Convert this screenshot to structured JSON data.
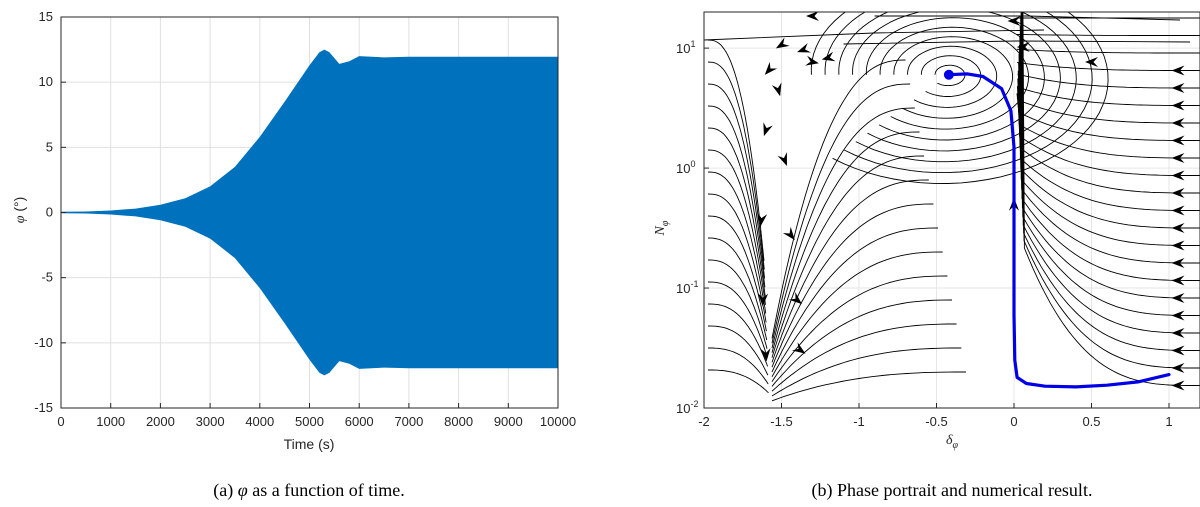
{
  "chart_data": [
    {
      "type": "area",
      "ylabel_symbol": "φ",
      "ylabel_unit": " (°)",
      "xlabel": "Time (s)",
      "xlim": [
        0,
        10000
      ],
      "ylim": [
        -15,
        15
      ],
      "xticks": [
        0,
        1000,
        2000,
        3000,
        4000,
        5000,
        6000,
        7000,
        8000,
        9000,
        10000
      ],
      "yticks": [
        -15,
        -10,
        -5,
        0,
        5,
        10,
        15
      ],
      "grid": true,
      "fill_color": "#0072bd",
      "series": [
        {
          "values": "upper envelope of oscillation amplitude (symmetric about 0)",
          "x": [
            0,
            500,
            1000,
            1500,
            2000,
            2500,
            3000,
            3500,
            4000,
            4500,
            5000,
            5200,
            5300,
            5400,
            5600,
            5800,
            6000,
            6500,
            7000,
            8000,
            9000,
            10000
          ],
          "y": [
            0.05,
            0.08,
            0.15,
            0.3,
            0.6,
            1.1,
            2.0,
            3.5,
            5.8,
            8.5,
            11.3,
            12.3,
            12.5,
            12.3,
            11.4,
            11.6,
            12.0,
            11.9,
            11.95,
            11.95,
            11.95,
            11.95
          ]
        }
      ],
      "caption_prefix": "(a) ",
      "caption_symbol": "φ",
      "caption_rest": " as a function of time."
    },
    {
      "type": "scatter",
      "xlabel_symbol": "δ",
      "xlabel_sub": "φ",
      "ylabel_symbol": "N",
      "ylabel_sub": "φ",
      "xlim": [
        -2,
        1.2
      ],
      "ylim": [
        0.01,
        20
      ],
      "yscale": "log",
      "xticks": [
        -2,
        -1.5,
        -1,
        -0.5,
        0,
        0.5,
        1
      ],
      "xtick_labels": [
        "-2",
        "-1.5",
        "-1",
        "-0.5",
        "0",
        "0.5",
        "1"
      ],
      "yticks": [
        0.01,
        0.1,
        1,
        10
      ],
      "ytick_bases": [
        "10",
        "10",
        "10",
        "10"
      ],
      "ytick_exps": [
        "-2",
        "-1",
        "0",
        "1"
      ],
      "grid": true,
      "streamline_color": "#000000",
      "trajectory_color": "#0000e6",
      "trajectory": {
        "x": [
          1.0,
          0.8,
          0.6,
          0.4,
          0.2,
          0.08,
          0.02,
          0.005,
          0.0,
          0.0,
          0.0,
          0.0,
          -0.02,
          -0.08,
          -0.2,
          -0.3,
          -0.42
        ],
        "y": [
          0.019,
          0.0165,
          0.0155,
          0.015,
          0.0152,
          0.016,
          0.018,
          0.025,
          0.06,
          0.2,
          0.6,
          1.5,
          3.0,
          4.6,
          5.8,
          6.1,
          6.0
        ]
      },
      "equilibrium": {
        "x": -0.42,
        "y": 6.0
      },
      "caption": "(b) Phase portrait and numerical result."
    }
  ]
}
